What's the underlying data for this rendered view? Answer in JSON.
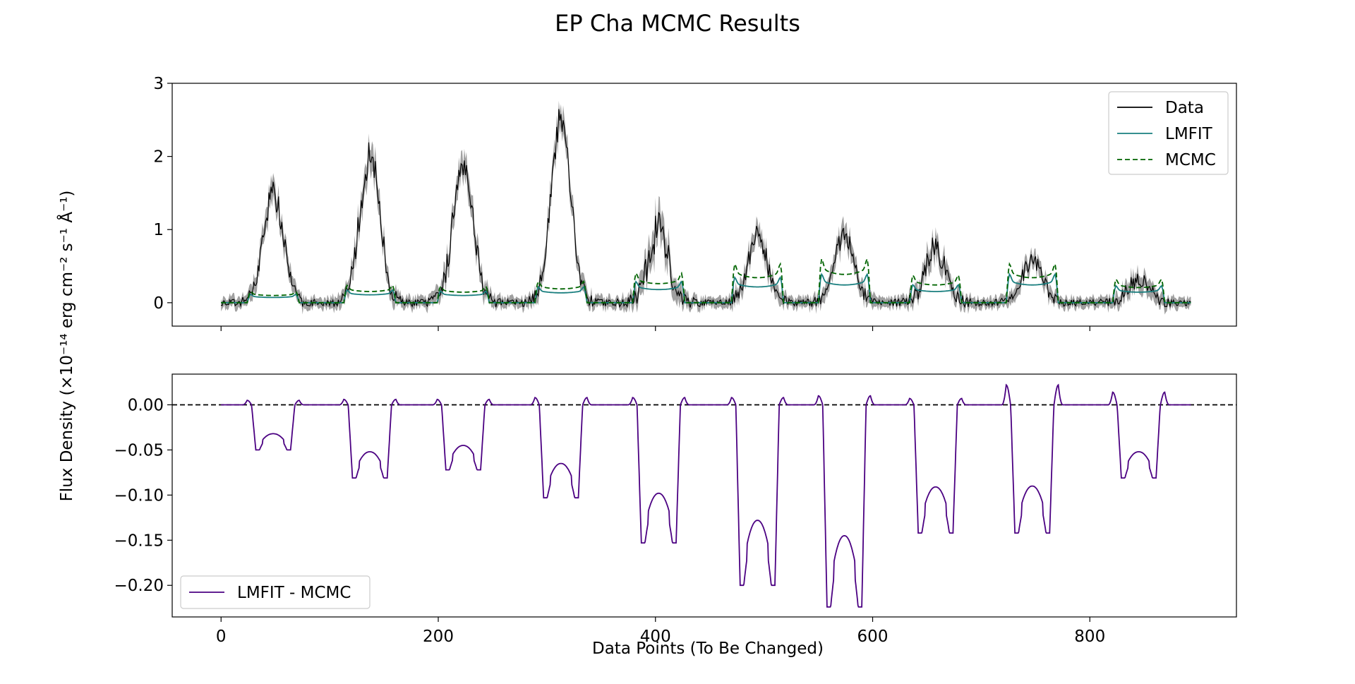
{
  "figure": {
    "title": "EP Cha MCMC Results",
    "ylabel": "Flux Density (×10⁻¹⁴ erg cm⁻² s⁻¹ Å⁻¹)",
    "xlabel": "Data Points (To Be Changed)"
  },
  "chart_data": [
    {
      "type": "line",
      "panel": "top",
      "xlim": [
        -45,
        935
      ],
      "ylim": [
        -0.32,
        3.0
      ],
      "xticks": [
        0,
        200,
        400,
        600,
        800
      ],
      "xtick_labels_visible": false,
      "yticks": [
        0,
        1,
        2,
        3
      ],
      "ytick_labels": [
        "0",
        "1",
        "2",
        "3"
      ],
      "legend": {
        "position": "top-right"
      },
      "peaks": [
        {
          "center": 48,
          "data_peak": 1.5,
          "lmfit": 0.08,
          "mcmc": 0.11,
          "noise": 0.15
        },
        {
          "center": 137,
          "data_peak": 2.0,
          "lmfit": 0.12,
          "mcmc": 0.17,
          "noise": 0.2
        },
        {
          "center": 223,
          "data_peak": 1.95,
          "lmfit": 0.11,
          "mcmc": 0.16,
          "noise": 0.2
        },
        {
          "center": 313,
          "data_peak": 2.5,
          "lmfit": 0.15,
          "mcmc": 0.21,
          "noise": 0.18
        },
        {
          "center": 403,
          "data_peak": 1.0,
          "lmfit": 0.2,
          "mcmc": 0.29,
          "noise": 0.25
        },
        {
          "center": 494,
          "data_peak": 0.9,
          "lmfit": 0.24,
          "mcmc": 0.38,
          "noise": 0.12
        },
        {
          "center": 574,
          "data_peak": 0.95,
          "lmfit": 0.27,
          "mcmc": 0.43,
          "noise": 0.12
        },
        {
          "center": 658,
          "data_peak": 0.75,
          "lmfit": 0.17,
          "mcmc": 0.27,
          "noise": 0.15
        },
        {
          "center": 747,
          "data_peak": 0.58,
          "lmfit": 0.27,
          "mcmc": 0.38,
          "noise": 0.08
        },
        {
          "center": 845,
          "data_peak": 0.32,
          "lmfit": 0.16,
          "mcmc": 0.23,
          "noise": 0.1
        }
      ],
      "x_extent": [
        0,
        893
      ],
      "series": [
        {
          "name": "Data",
          "color": "#000000",
          "style": "solid",
          "uncertainty_band": "#808080"
        },
        {
          "name": "LMFIT",
          "color": "#1a7f7f",
          "style": "solid"
        },
        {
          "name": "MCMC",
          "color": "#006400",
          "style": "dashed"
        }
      ]
    },
    {
      "type": "line",
      "panel": "bottom",
      "xlim": [
        -45,
        935
      ],
      "ylim": [
        -0.235,
        0.034
      ],
      "xticks": [
        0,
        200,
        400,
        600,
        800
      ],
      "xtick_labels": [
        "0",
        "200",
        "400",
        "600",
        "800"
      ],
      "yticks": [
        0.0,
        -0.05,
        -0.1,
        -0.15,
        -0.2
      ],
      "ytick_labels": [
        "0.00",
        "−0.05",
        "−0.10",
        "−0.15",
        "−0.20"
      ],
      "reference_line": {
        "y": 0,
        "style": "dashed",
        "color": "#000000"
      },
      "legend": {
        "position": "bottom-left"
      },
      "dips": [
        {
          "center": 48,
          "min": -0.05,
          "mid": -0.032,
          "spike": 0.005
        },
        {
          "center": 137,
          "min": -0.081,
          "mid": -0.052,
          "spike": 0.006
        },
        {
          "center": 223,
          "min": -0.072,
          "mid": -0.045,
          "spike": 0.006
        },
        {
          "center": 313,
          "min": -0.103,
          "mid": -0.065,
          "spike": 0.008
        },
        {
          "center": 403,
          "min": -0.153,
          "mid": -0.098,
          "spike": 0.008
        },
        {
          "center": 494,
          "min": -0.2,
          "mid": -0.128,
          "spike": 0.008
        },
        {
          "center": 574,
          "min": -0.224,
          "mid": -0.145,
          "spike": 0.01
        },
        {
          "center": 658,
          "min": -0.142,
          "mid": -0.091,
          "spike": 0.007
        },
        {
          "center": 747,
          "min": -0.142,
          "mid": -0.09,
          "spike": 0.022
        },
        {
          "center": 845,
          "min": -0.081,
          "mid": -0.052,
          "spike": 0.014
        }
      ],
      "series": [
        {
          "name": "LMFIT - MCMC",
          "color": "#4b0082",
          "style": "solid"
        }
      ]
    }
  ]
}
